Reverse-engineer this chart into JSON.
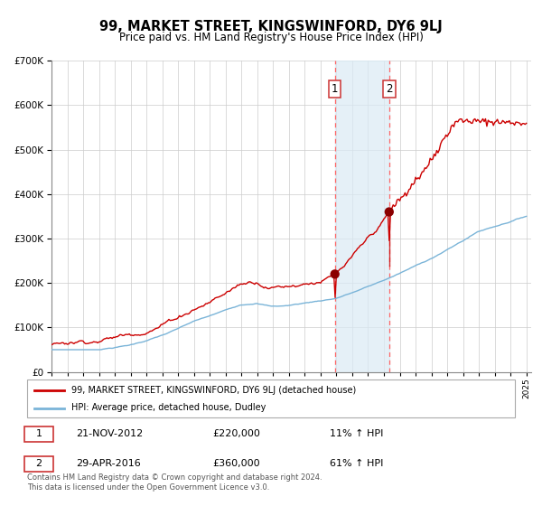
{
  "title": "99, MARKET STREET, KINGSWINFORD, DY6 9LJ",
  "subtitle": "Price paid vs. HM Land Registry's House Price Index (HPI)",
  "legend_line1": "99, MARKET STREET, KINGSWINFORD, DY6 9LJ (detached house)",
  "legend_line2": "HPI: Average price, detached house, Dudley",
  "transaction1_date": "21-NOV-2012",
  "transaction1_price": 220000,
  "transaction1_hpi": "11% ↑ HPI",
  "transaction1_year": 2012.9,
  "transaction2_date": "29-APR-2016",
  "transaction2_price": 360000,
  "transaction2_hpi": "61% ↑ HPI",
  "transaction2_year": 2016.33,
  "note": "Contains HM Land Registry data © Crown copyright and database right 2024.\nThis data is licensed under the Open Government Licence v3.0.",
  "hpi_color": "#7ab4d8",
  "price_color": "#cc0000",
  "dot_color": "#8b0000",
  "shade_color": "#daeaf5",
  "dashed_color": "#ff6666",
  "ylim_max": 700000,
  "start_year": 1995,
  "end_year": 2025
}
